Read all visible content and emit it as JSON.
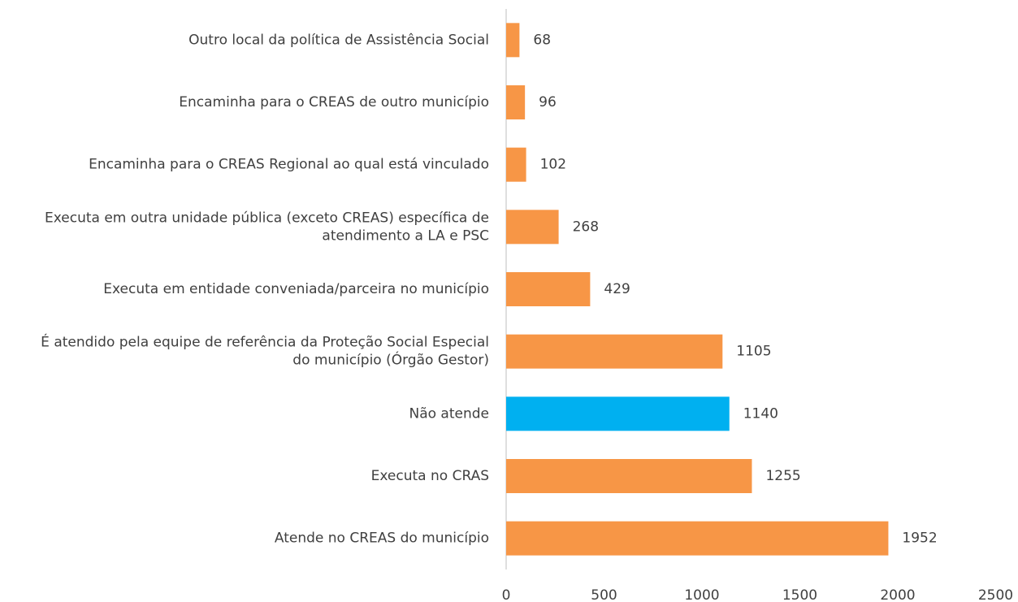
{
  "chart_data": {
    "type": "bar",
    "orientation": "horizontal",
    "categories": [
      "Outro local da política de Assistência Social",
      "Encaminha para o CREAS de outro município",
      "Encaminha para o CREAS Regional ao qual está vinculado",
      "Executa em outra unidade pública (exceto CREAS) específica de atendimento a LA e PSC",
      "Executa em entidade conveniada/parceira no município",
      "É atendido pela equipe de referência da Proteção Social Especial do município (Órgão Gestor)",
      "Não atende",
      "Executa no CRAS",
      "Atende no CREAS do município"
    ],
    "values": [
      68,
      96,
      102,
      268,
      429,
      1105,
      1140,
      1255,
      1952
    ],
    "colors": [
      "#f79646",
      "#f79646",
      "#f79646",
      "#f79646",
      "#f79646",
      "#f79646",
      "#00b0f0",
      "#f79646",
      "#f79646"
    ],
    "xlim": [
      0,
      2500
    ],
    "xticks": [
      0,
      500,
      1000,
      1500,
      2000,
      2500
    ],
    "grid": false
  }
}
